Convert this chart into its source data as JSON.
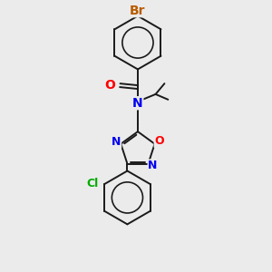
{
  "bg_color": "#ebebeb",
  "bond_color": "#1a1a1a",
  "atom_colors": {
    "Br": "#b85c00",
    "O": "#ff0000",
    "N": "#0000ee",
    "Cl": "#00aa00"
  },
  "font_size": 9,
  "line_width": 1.4,
  "fig_width": 3.0,
  "fig_height": 3.0,
  "dpi": 100
}
